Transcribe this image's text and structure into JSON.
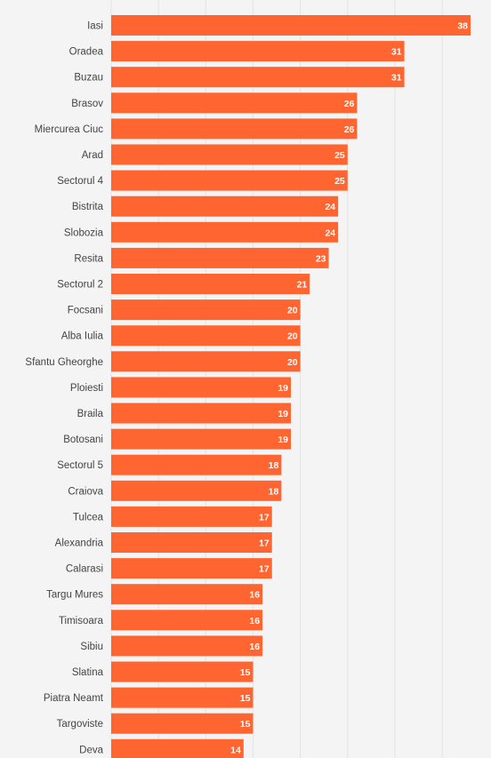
{
  "chart_data": {
    "type": "bar",
    "orientation": "horizontal",
    "title": "",
    "xlabel": "",
    "ylabel": "",
    "xlim": [
      0,
      38
    ],
    "grid": true,
    "bar_color": "#ff6530",
    "label_color": "#444444",
    "value_label_color": "#ffffff",
    "background": "#f4f4f4",
    "categories": [
      "Iasi",
      "Oradea",
      "Buzau",
      "Brasov",
      "Miercurea Ciuc",
      "Arad",
      "Sectorul 4",
      "Bistrita",
      "Slobozia",
      "Resita",
      "Sectorul 2",
      "Focsani",
      "Alba Iulia",
      "Sfantu Gheorghe",
      "Ploiesti",
      "Braila",
      "Botosani",
      "Sectorul 5",
      "Craiova",
      "Tulcea",
      "Alexandria",
      "Calarasi",
      "Targu Mures",
      "Timisoara",
      "Sibiu",
      "Slatina",
      "Piatra Neamt",
      "Targoviste",
      "Deva"
    ],
    "values": [
      38,
      31,
      31,
      26,
      26,
      25,
      25,
      24,
      24,
      23,
      21,
      20,
      20,
      20,
      19,
      19,
      19,
      18,
      18,
      17,
      17,
      17,
      16,
      16,
      16,
      15,
      15,
      15,
      14
    ]
  }
}
